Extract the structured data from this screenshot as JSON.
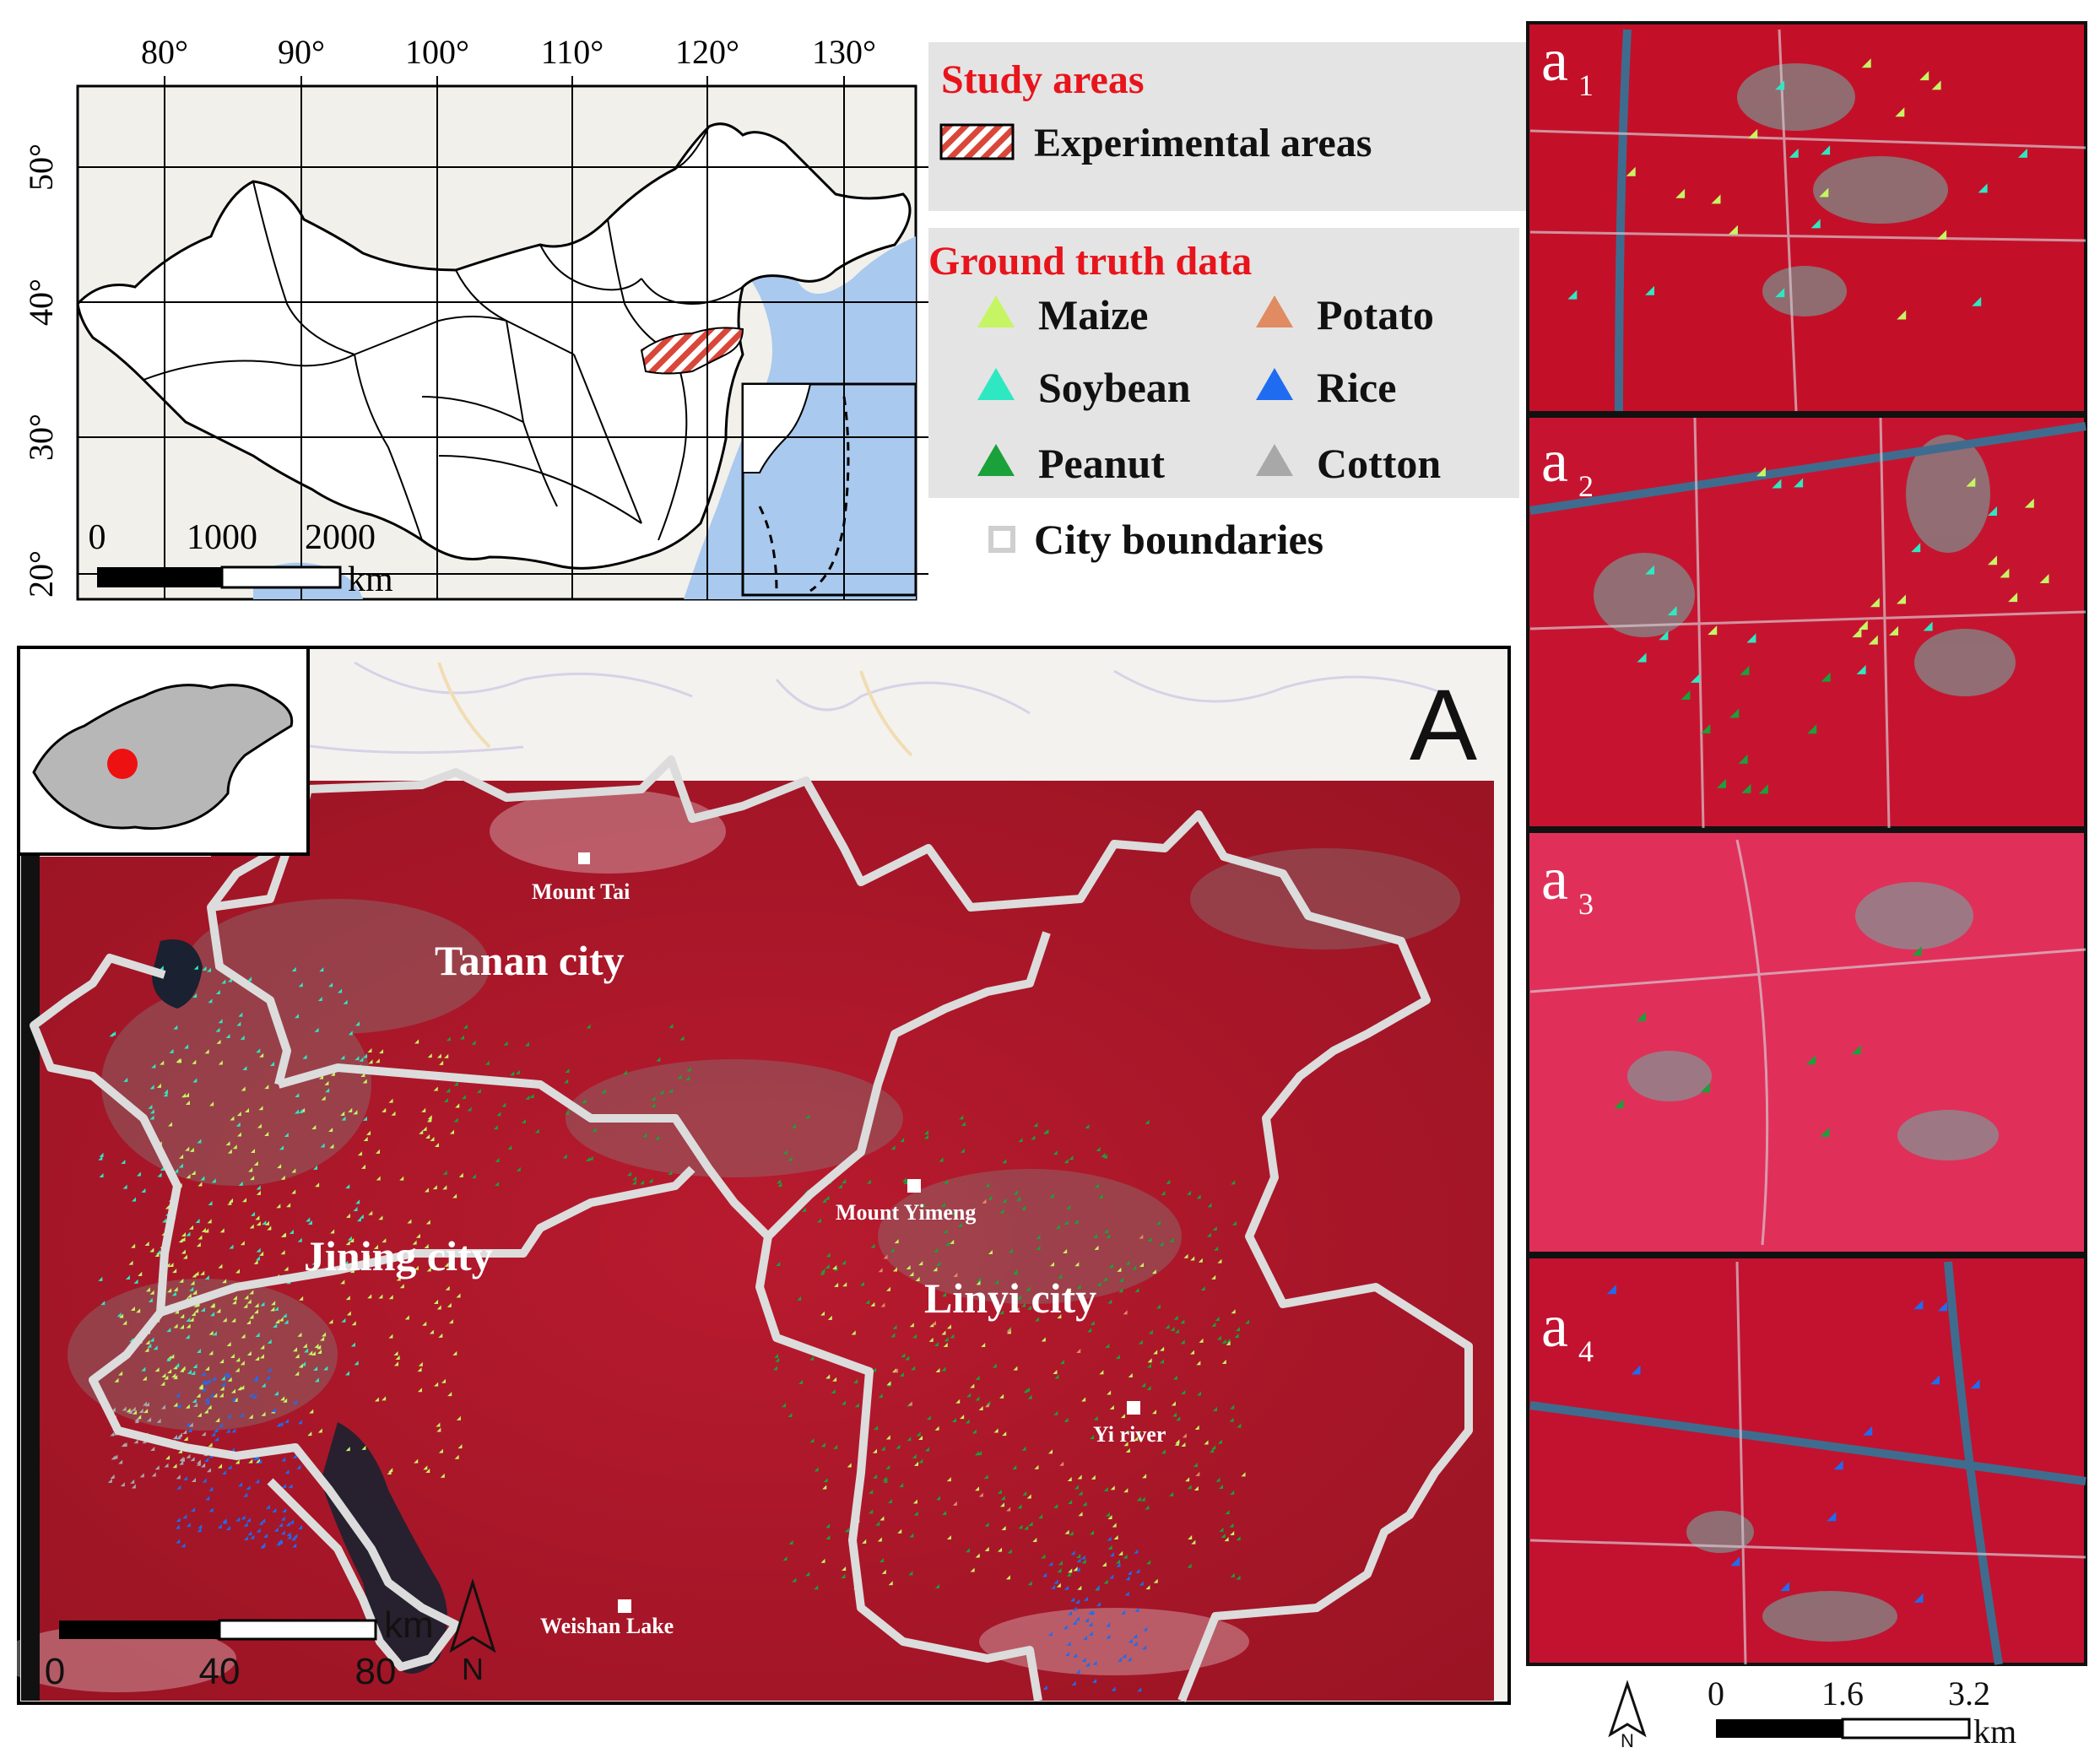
{
  "china_map": {
    "lon_ticks": [
      "80°",
      "90°",
      "100°",
      "110°",
      "120°",
      "130°"
    ],
    "lat_ticks": [
      "50°",
      "40°",
      "30°",
      "20°"
    ],
    "scale_labels": [
      "0",
      "1000",
      "2000"
    ],
    "scale_unit": "km"
  },
  "legend": {
    "study_title": "Study areas",
    "experimental_label": "Experimental areas",
    "ground_title": "Ground truth data",
    "items": [
      {
        "label": "Maize",
        "color": "#c6f564"
      },
      {
        "label": "Potato",
        "color": "#e08b62"
      },
      {
        "label": "Soybean",
        "color": "#2ee8c2"
      },
      {
        "label": "Rice",
        "color": "#1f6cf0"
      },
      {
        "label": "Peanut",
        "color": "#1aa13a"
      },
      {
        "label": "Cotton",
        "color": "#a8a8a8"
      }
    ],
    "city_label": "City boundaries"
  },
  "main_map": {
    "panel_letter": "A",
    "cities": [
      "Tanan city",
      "Jining city",
      "Linyi city"
    ],
    "places": [
      "Mount Tai",
      "Mount Yimeng",
      "Yi river",
      "Weishan Lake"
    ],
    "scale_labels": [
      "0",
      "40",
      "80"
    ],
    "scale_unit": "km",
    "north": "N"
  },
  "subpanels": [
    {
      "letter": "a",
      "sub": "1"
    },
    {
      "letter": "a",
      "sub": "2"
    },
    {
      "letter": "a",
      "sub": "3"
    },
    {
      "letter": "a",
      "sub": "4"
    }
  ],
  "sub_scale": {
    "labels": [
      "0",
      "1.6",
      "3.2"
    ],
    "unit": "km",
    "north": "N"
  },
  "colors": {
    "imagery_red": "#d4142f",
    "land": "#ffffff",
    "sea": "#a9c9ee",
    "legend_bg": "#e4e4e4",
    "title_red": "#e8141c"
  }
}
